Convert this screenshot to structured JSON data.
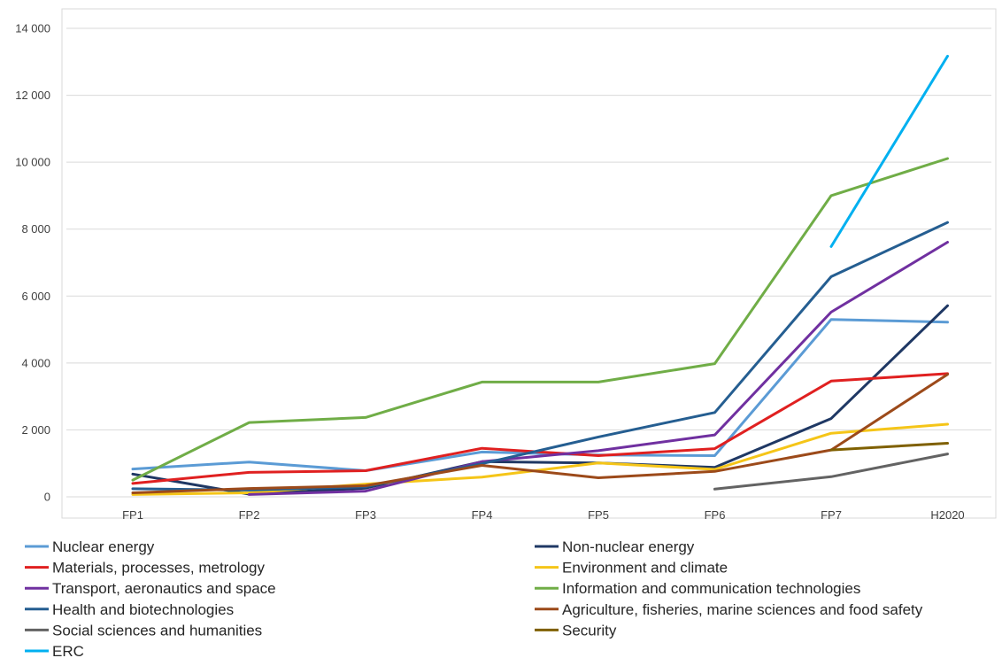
{
  "chart_data": {
    "type": "line",
    "title": "",
    "xlabel": "",
    "ylabel": "",
    "categories": [
      "FP1",
      "FP2",
      "FP3",
      "FP4",
      "FP5",
      "FP6",
      "FP7",
      "H2020"
    ],
    "ylim": [
      0,
      14000
    ],
    "yticks": [
      0,
      2000,
      4000,
      6000,
      8000,
      10000,
      12000,
      14000
    ],
    "ytick_labels": [
      "0",
      "2 000",
      "4 000",
      "6 000",
      "8 000",
      "10 000",
      "12 000",
      "14 000"
    ],
    "grid": true,
    "legend_position": "bottom",
    "series": [
      {
        "name": "Nuclear energy",
        "color": "#5b9bd5",
        "values": [
          830,
          1040,
          780,
          1340,
          1250,
          1230,
          5300,
          5220
        ]
      },
      {
        "name": "Non-nuclear energy",
        "color": "#1f3864",
        "values": [
          680,
          80,
          260,
          1050,
          1010,
          880,
          2340,
          5710
        ]
      },
      {
        "name": "Materials, processes, metrology",
        "color": "#e02020",
        "values": [
          400,
          730,
          780,
          1450,
          1230,
          1440,
          3460,
          3680
        ]
      },
      {
        "name": "Environment and climate",
        "color": "#f5c518",
        "values": [
          70,
          120,
          380,
          590,
          1010,
          820,
          1900,
          2170
        ]
      },
      {
        "name": "Transport, aeronautics and space",
        "color": "#7030a0",
        "values": [
          null,
          70,
          170,
          1050,
          1380,
          1850,
          5520,
          7610
        ]
      },
      {
        "name": "Information and communication technologies",
        "color": "#70ad47",
        "values": [
          500,
          2220,
          2370,
          3430,
          3430,
          3980,
          9000,
          10110
        ]
      },
      {
        "name": "Health and biotechnologies",
        "color": "#255e91",
        "values": [
          240,
          200,
          300,
          990,
          1790,
          2520,
          6580,
          8200
        ]
      },
      {
        "name": "Agriculture, fisheries, marine sciences and food safety",
        "color": "#9c4a1a",
        "values": [
          120,
          250,
          330,
          940,
          570,
          760,
          1400,
          3660
        ]
      },
      {
        "name": "Social sciences and humanities",
        "color": "#636363",
        "values": [
          null,
          null,
          null,
          null,
          null,
          230,
          600,
          1280
        ]
      },
      {
        "name": "Security",
        "color": "#7f6000",
        "values": [
          null,
          null,
          null,
          null,
          null,
          null,
          1400,
          1600
        ]
      },
      {
        "name": "ERC",
        "color": "#00b0f0",
        "values": [
          null,
          null,
          null,
          null,
          null,
          null,
          7480,
          13170
        ]
      }
    ]
  }
}
